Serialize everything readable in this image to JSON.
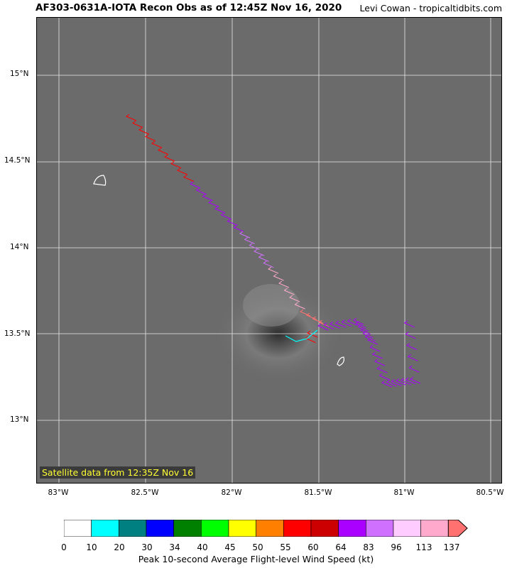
{
  "header": {
    "title": "AF303-0631A-IOTA Recon Obs as of 12:45Z Nov 16, 2020",
    "credit": "Levi Cowan - tropicaltidbits.com"
  },
  "map": {
    "satellite_caption": "Satellite data from 12:35Z Nov 16",
    "lat_labels": [
      "15°N",
      "14.5°N",
      "14°N",
      "13.5°N",
      "13°N"
    ],
    "lon_labels": [
      "83°W",
      "82.5°W",
      "82°W",
      "81.5°W",
      "81°W",
      "80.5°W"
    ],
    "background_color": "#6b6b6b",
    "grid_color": "#ffffff"
  },
  "colorbar": {
    "ticks": [
      "0",
      "10",
      "20",
      "30",
      "34",
      "40",
      "45",
      "50",
      "55",
      "60",
      "64",
      "83",
      "96",
      "113",
      "137"
    ],
    "colors": [
      "#ffffff",
      "#00ffff",
      "#008080",
      "#0000ff",
      "#008000",
      "#00ff00",
      "#ffff00",
      "#ff8000",
      "#ff0000",
      "#cc0000",
      "#aa00ff",
      "#d070ff",
      "#ffccff",
      "#ffaacc",
      "#ff7070"
    ],
    "label": "Peak 10-second Average Flight-level Wind Speed (kt)"
  }
}
